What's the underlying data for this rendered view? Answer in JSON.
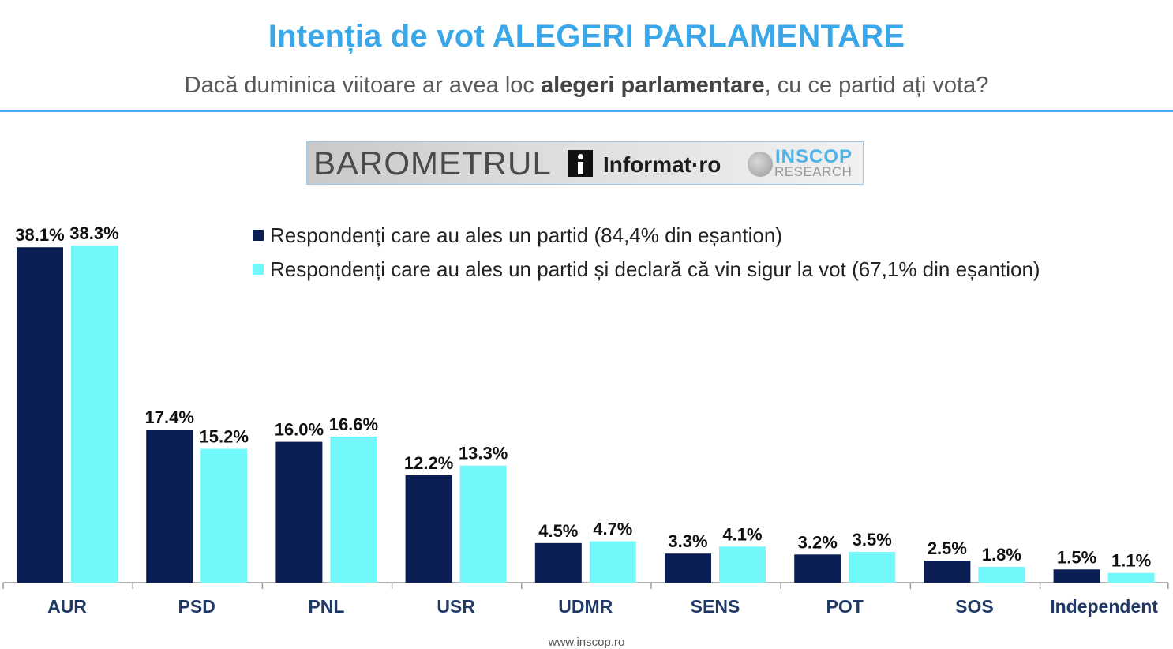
{
  "header": {
    "title": "Intenția de vot ALEGERI PARLAMENTARE",
    "subtitle_pre": "Dacă duminica viitoare ar avea loc ",
    "subtitle_bold": "alegeri parlamentare",
    "subtitle_post": ", cu ce partid ați vota?"
  },
  "logo": {
    "barometru": "BAROMETRUL",
    "informat": "Informat·ro",
    "inscop": "INSCOP",
    "research": "RESEARCH"
  },
  "footer": {
    "url": "www.inscop.ro"
  },
  "colors": {
    "series1": "#0b1f54",
    "series2": "#72f8fb",
    "title": "#3aa7e8",
    "rule": "#4fb0e6"
  },
  "chart_data": {
    "type": "bar",
    "title": "Intenția de vot ALEGERI PARLAMENTARE",
    "categories": [
      "AUR",
      "PSD",
      "PNL",
      "USR",
      "UDMR",
      "SENS",
      "POT",
      "SOS",
      "Independent"
    ],
    "series": [
      {
        "name": "Respondenți care au ales un partid (84,4% din eșantion)",
        "values": [
          38.1,
          17.4,
          16.0,
          12.2,
          4.5,
          3.3,
          3.2,
          2.5,
          1.5
        ],
        "labels": [
          "38.1%",
          "17.4%",
          "16.0%",
          "12.2%",
          "4.5%",
          "3.3%",
          "3.2%",
          "2.5%",
          "1.5%"
        ]
      },
      {
        "name": "Respondenți care au ales un partid și declară că vin sigur la vot (67,1% din eșantion)",
        "values": [
          38.3,
          15.2,
          16.6,
          13.3,
          4.7,
          4.1,
          3.5,
          1.8,
          1.1
        ],
        "labels": [
          "38.3%",
          "15.2%",
          "16.6%",
          "13.3%",
          "4.7%",
          "4.1%",
          "3.5%",
          "1.8%",
          "1.1%"
        ]
      }
    ],
    "legend_position": "top",
    "grid": false
  }
}
